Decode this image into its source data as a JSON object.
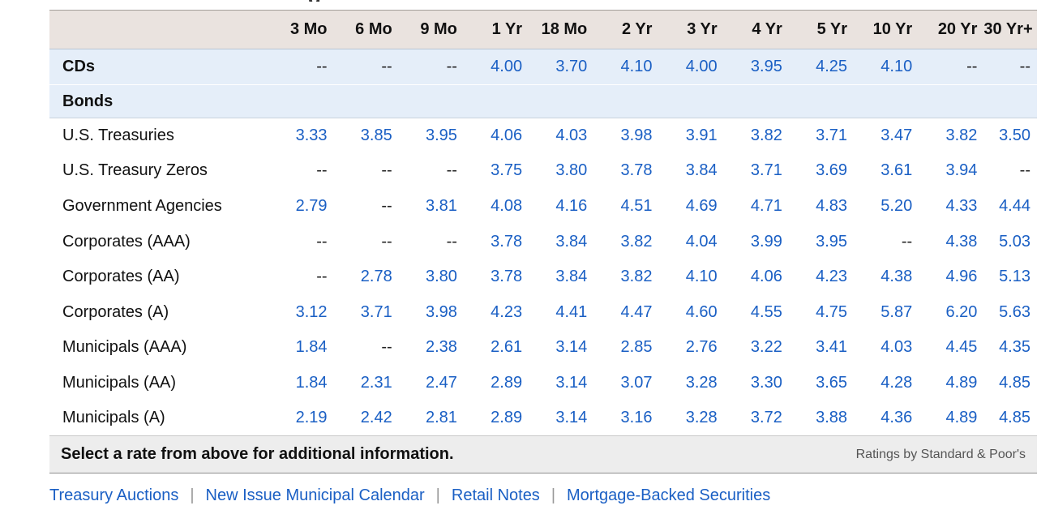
{
  "page_title_fragment": "g",
  "columns": [
    "3 Mo",
    "6 Mo",
    "9 Mo",
    "1 Yr",
    "18 Mo",
    "2 Yr",
    "3 Yr",
    "4 Yr",
    "5 Yr",
    "10 Yr",
    "20 Yr",
    "30 Yr+"
  ],
  "cds": {
    "label": "CDs",
    "values": [
      "--",
      "--",
      "--",
      "4.00",
      "3.70",
      "4.10",
      "4.00",
      "3.95",
      "4.25",
      "4.10",
      "--",
      "--"
    ]
  },
  "bonds_section": {
    "label": "Bonds"
  },
  "rows": [
    {
      "label": "U.S. Treasuries",
      "values": [
        "3.33",
        "3.85",
        "3.95",
        "4.06",
        "4.03",
        "3.98",
        "3.91",
        "3.82",
        "3.71",
        "3.47",
        "3.82",
        "3.50"
      ]
    },
    {
      "label": "U.S. Treasury Zeros",
      "values": [
        "--",
        "--",
        "--",
        "3.75",
        "3.80",
        "3.78",
        "3.84",
        "3.71",
        "3.69",
        "3.61",
        "3.94",
        "--"
      ]
    },
    {
      "label": "Government Agencies",
      "values": [
        "2.79",
        "--",
        "3.81",
        "4.08",
        "4.16",
        "4.51",
        "4.69",
        "4.71",
        "4.83",
        "5.20",
        "4.33",
        "4.44"
      ]
    },
    {
      "label": "Corporates (AAA)",
      "values": [
        "--",
        "--",
        "--",
        "3.78",
        "3.84",
        "3.82",
        "4.04",
        "3.99",
        "3.95",
        "--",
        "4.38",
        "5.03"
      ]
    },
    {
      "label": "Corporates (AA)",
      "values": [
        "--",
        "2.78",
        "3.80",
        "3.78",
        "3.84",
        "3.82",
        "4.10",
        "4.06",
        "4.23",
        "4.38",
        "4.96",
        "5.13"
      ]
    },
    {
      "label": "Corporates (A)",
      "values": [
        "3.12",
        "3.71",
        "3.98",
        "4.23",
        "4.41",
        "4.47",
        "4.60",
        "4.55",
        "4.75",
        "5.87",
        "6.20",
        "5.63"
      ]
    },
    {
      "label": "Municipals (AAA)",
      "values": [
        "1.84",
        "--",
        "2.38",
        "2.61",
        "3.14",
        "2.85",
        "2.76",
        "3.22",
        "3.41",
        "4.03",
        "4.45",
        "4.35"
      ]
    },
    {
      "label": "Municipals (AA)",
      "values": [
        "1.84",
        "2.31",
        "2.47",
        "2.89",
        "3.14",
        "3.07",
        "3.28",
        "3.30",
        "3.65",
        "4.28",
        "4.89",
        "4.85"
      ]
    },
    {
      "label": "Municipals (A)",
      "values": [
        "2.19",
        "2.42",
        "2.81",
        "2.89",
        "3.14",
        "3.16",
        "3.28",
        "3.72",
        "3.88",
        "4.36",
        "4.89",
        "4.85"
      ]
    }
  ],
  "footer": {
    "note": "Select a rate from above for additional information.",
    "credit": "Ratings by Standard & Poor's"
  },
  "links": [
    "Treasury Auctions",
    "New Issue Municipal Calendar",
    "Retail Notes",
    "Mortgage-Backed Securities"
  ],
  "colors": {
    "link_blue": "#1a5fc4",
    "header_bg": "#eae3df",
    "section_bg": "#e5eef9",
    "footer_bg": "#ededed"
  }
}
